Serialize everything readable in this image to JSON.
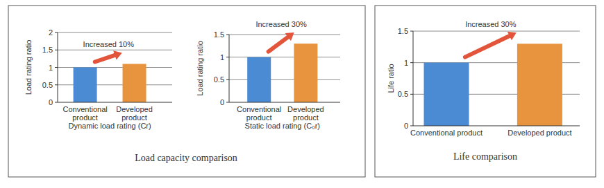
{
  "captions": [
    "Load capacity comparison",
    "Life comparison"
  ],
  "chart_data": [
    {
      "type": "bar",
      "categories": [
        "Conventional product",
        "Developed product"
      ],
      "values": [
        1,
        1.1
      ],
      "colors": [
        "#4a8bd3",
        "#e8933d"
      ],
      "ylim": [
        0,
        2
      ],
      "yticks": [
        0,
        0.5,
        1,
        1.5,
        2
      ],
      "grid": true,
      "y_label": "Load rating ratio",
      "x_label": "Dynamic load rating (Cr)",
      "annotation": "Increased 10%"
    },
    {
      "type": "bar",
      "categories": [
        "Conventional product",
        "Developed product"
      ],
      "values": [
        1,
        1.3
      ],
      "colors": [
        "#4a8bd3",
        "#e8933d"
      ],
      "ylim": [
        0,
        1.5
      ],
      "yticks": [
        0,
        0.5,
        1,
        1.5
      ],
      "grid": true,
      "y_label": "Load rating ratio",
      "x_label": "Static load rating (C₀r)",
      "annotation": "Increased 30%"
    },
    {
      "type": "bar",
      "categories": [
        "Conventional product",
        "Developed product"
      ],
      "values": [
        1,
        1.3
      ],
      "colors": [
        "#4a8bd3",
        "#e8933d"
      ],
      "ylim": [
        0,
        1.5
      ],
      "yticks": [
        0,
        0.5,
        1,
        1.5
      ],
      "grid": true,
      "y_label": "Life ratio",
      "annotation": "Increased 30%"
    }
  ]
}
